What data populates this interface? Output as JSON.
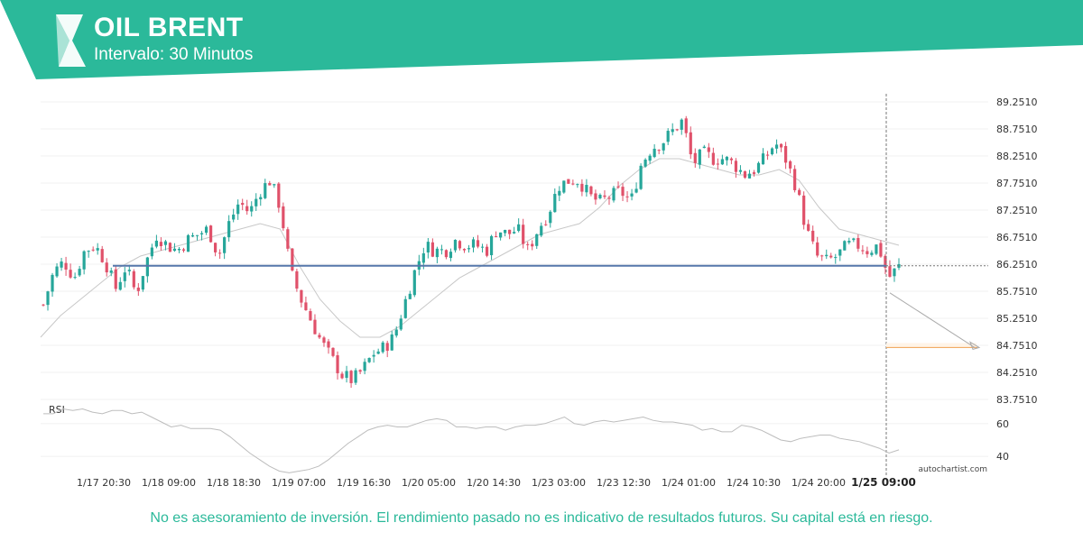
{
  "header": {
    "title": "OIL BRENT",
    "subtitle": "Intervalo: 30 Minutos",
    "brand_color": "#2bb99a",
    "logo_icon": "autochartist-logo-icon"
  },
  "footer": {
    "disclaimer": "No es asesoramiento de inversión. El rendimiento pasado no es indicativo de resultados futuros. Su capital está en riesgo.",
    "watermark": "autochartist.com"
  },
  "chart_data": [
    {
      "type": "candlestick",
      "title": "OIL BRENT",
      "ylim": [
        83.6,
        89.4
      ],
      "y_ticks": [
        "89.2510",
        "88.7510",
        "88.2510",
        "87.7510",
        "87.2510",
        "86.7510",
        "86.2510",
        "85.7510",
        "85.2510",
        "84.7510",
        "84.2510",
        "83.7510"
      ],
      "x_ticks": [
        "1/17 20:30",
        "1/18 09:00",
        "1/18 18:30",
        "1/19 07:00",
        "1/19 16:30",
        "1/20 05:00",
        "1/20 14:30",
        "1/23 03:00",
        "1/23 12:30",
        "1/24 01:00",
        "1/24 10:30",
        "1/24 20:00",
        "1/25 09:00"
      ],
      "highlighted_x_tick": "1/25 09:00",
      "close_path": [
        85.5,
        86.1,
        86.3,
        86.0,
        86.5,
        86.6,
        86.3,
        85.8,
        86.2,
        85.7,
        86.3,
        86.8,
        86.6,
        86.5,
        86.7,
        86.8,
        86.9,
        86.4,
        87.0,
        87.4,
        87.2,
        87.6,
        87.8,
        87.3,
        86.1,
        85.6,
        85.2,
        84.8,
        84.5,
        84.2,
        84.1,
        84.3,
        84.6,
        84.7,
        84.9,
        85.5,
        86.1,
        86.6,
        86.5,
        86.5,
        86.7,
        86.6,
        86.6,
        86.5,
        86.9,
        86.8,
        86.9,
        86.5,
        86.9,
        87.2,
        87.7,
        87.8,
        87.8,
        87.5,
        87.4,
        87.5,
        87.6,
        87.4,
        88.1,
        88.4,
        88.5,
        88.7,
        88.9,
        88.1,
        88.3,
        88.2,
        88.2,
        88.1,
        87.9,
        88.0,
        88.2,
        88.5,
        88.2,
        87.7,
        86.9,
        86.4,
        86.3,
        86.4,
        86.6,
        86.6,
        86.5,
        86.6,
        86.0,
        86.2
      ],
      "indicators": {
        "moving_average": [
          84.9,
          85.3,
          85.6,
          85.9,
          86.2,
          86.4,
          86.5,
          86.6,
          86.7,
          86.8,
          86.9,
          87.0,
          86.9,
          86.2,
          85.6,
          85.2,
          84.9,
          84.9,
          85.1,
          85.4,
          85.7,
          86.0,
          86.2,
          86.4,
          86.6,
          86.8,
          86.9,
          87.0,
          87.3,
          87.7,
          88.0,
          88.2,
          88.2,
          88.1,
          88.0,
          87.9,
          87.9,
          88.0,
          87.8,
          87.3,
          86.9,
          86.8,
          86.7,
          86.6
        ],
        "support_level": 86.22,
        "current_level": 86.22,
        "forecast_from": 85.72,
        "forecast_to": 84.71
      }
    },
    {
      "type": "line",
      "title": "RSI",
      "ylim": [
        28,
        72
      ],
      "y_ticks": [
        "60",
        "40"
      ],
      "values": [
        66,
        66,
        69,
        68,
        69,
        67,
        66,
        68,
        68,
        66,
        67,
        64,
        61,
        58,
        59,
        57,
        57,
        57,
        56,
        52,
        47,
        42,
        38,
        34,
        31,
        30,
        31,
        32,
        34,
        38,
        43,
        48,
        52,
        56,
        58,
        59,
        58,
        58,
        60,
        62,
        63,
        62,
        58,
        58,
        57,
        58,
        58,
        56,
        58,
        59,
        59,
        60,
        62,
        64,
        60,
        59,
        61,
        62,
        61,
        62,
        63,
        64,
        62,
        61,
        61,
        60,
        59,
        56,
        57,
        55,
        55,
        59,
        58,
        56,
        53,
        50,
        49,
        51,
        52,
        53,
        53,
        51,
        50,
        49,
        47,
        45,
        42,
        44
      ]
    }
  ]
}
